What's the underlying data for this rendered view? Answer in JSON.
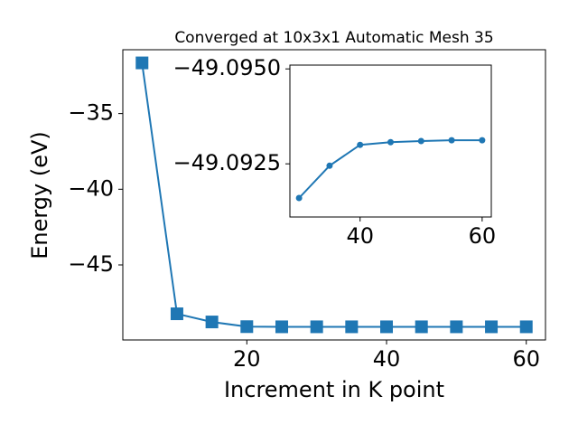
{
  "chart_data": [
    {
      "type": "line",
      "title": "Converged at 10x3x1 Automatic Mesh 35",
      "x_label": "Increment in K point",
      "y_label": "Energy (eV)",
      "x": [
        5,
        10,
        15,
        20,
        25,
        30,
        35,
        40,
        45,
        50,
        55,
        60
      ],
      "series": [
        {
          "color": "#1f77b4",
          "marker": "square",
          "values": [
            -31.65,
            -48.23,
            -48.77,
            -49.08,
            -49.09,
            -49.09,
            -49.09,
            -49.09,
            -49.09,
            -49.09,
            -49.09,
            -49.09
          ]
        }
      ],
      "xlim": [
        2.25,
        62.75
      ],
      "ylim": [
        -49.96,
        -30.78
      ],
      "xticks": [
        20,
        40,
        60
      ],
      "yticks": [
        {
          "value": -35,
          "label": "−35"
        },
        {
          "value": -40,
          "label": "−40"
        },
        {
          "value": -45,
          "label": "−45"
        }
      ]
    },
    {
      "type": "line",
      "x": [
        30,
        35,
        40,
        45,
        50,
        55,
        60
      ],
      "series": [
        {
          "color": "#1f77b4",
          "marker": "circle",
          "values": [
            -49.0916,
            -49.09245,
            -49.093,
            -49.09307,
            -49.0931,
            -49.09312,
            -49.09312
          ]
        }
      ],
      "xlim": [
        28.5,
        61.5
      ],
      "ylim": [
        -49.0911,
        -49.0951
      ],
      "xticks": [
        40,
        60
      ],
      "yticks": [
        {
          "value": -49.095,
          "label": "−49.0950"
        },
        {
          "value": -49.0925,
          "label": "−49.0925"
        }
      ]
    }
  ]
}
